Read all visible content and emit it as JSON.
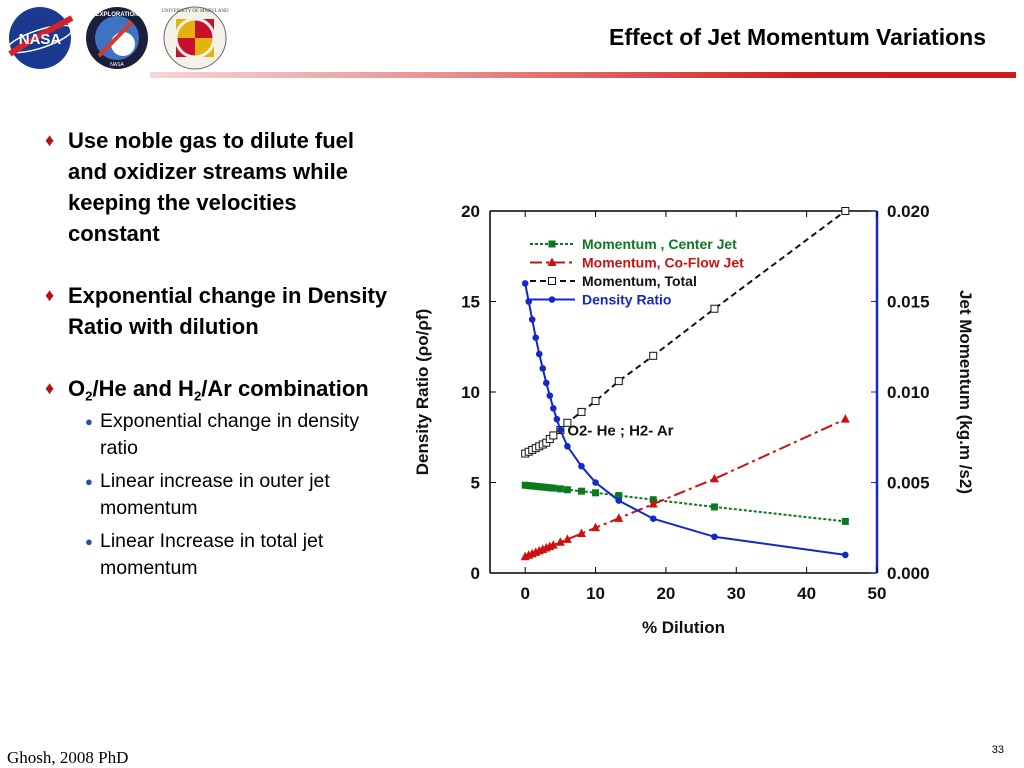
{
  "header": {
    "title": "Effect of Jet Momentum Variations",
    "logos": {
      "nasa": "NASA",
      "exploration": "EXPLORATION",
      "exploration_sub": "NASA",
      "umd": "UNIVERSITY OF MARYLAND"
    },
    "accent": "#d11919"
  },
  "bullets": [
    {
      "text": "Use noble gas to dilute fuel and oxidizer streams while keeping the velocities constant"
    },
    {
      "text": "Exponential change in Density Ratio with dilution"
    },
    {
      "o": "O",
      "o_sub": "2",
      "mid": "/He and H",
      "h_sub": "2",
      "end": "/Ar combination",
      "sub_items": [
        "Exponential change in density ratio",
        "Linear increase in outer jet momentum",
        "Linear Increase in total jet momentum"
      ]
    }
  ],
  "footer": {
    "author": "Ghosh, 2008 PhD",
    "page": "33"
  },
  "chart_data": {
    "type": "line",
    "xlabel": "% Dilution",
    "ylabel": "Density Ratio (ρo/ρf)",
    "y2label": "Jet Momentum (kg.m /s2)",
    "xlim": [
      -5,
      50
    ],
    "ylim": [
      0,
      20
    ],
    "y2lim": [
      0.0,
      0.02
    ],
    "x_ticks": [
      "0",
      "10",
      "20",
      "30",
      "40",
      "50"
    ],
    "y_ticks": [
      "0",
      "5",
      "10",
      "15",
      "20"
    ],
    "y2_ticks": [
      "0.000",
      "0.005",
      "0.010",
      "0.015",
      "0.020"
    ],
    "annotation": "O2- He ; H2- Ar",
    "legend_placement": "top-left",
    "grid": false,
    "series": [
      {
        "name": "Momentum , Center Jet",
        "axis": "right",
        "color": "#0a7a1e",
        "dash": "3 2",
        "marker": "square-filled",
        "x": [
          0,
          0.5,
          1,
          1.5,
          2,
          2.5,
          3,
          3.5,
          4,
          5,
          6,
          8,
          10,
          13.3,
          18.2,
          26.9,
          45.5
        ],
        "y": [
          0.00485,
          0.00483,
          0.00481,
          0.00479,
          0.00477,
          0.00475,
          0.00473,
          0.00471,
          0.00469,
          0.00465,
          0.0046,
          0.00452,
          0.00443,
          0.00428,
          0.00405,
          0.00365,
          0.00285
        ]
      },
      {
        "name": "Momentum, Co-Flow Jet",
        "axis": "right",
        "color": "#cc1111",
        "dash": "12 4 3 4",
        "marker": "triangle-filled",
        "x": [
          0,
          0.5,
          1,
          1.5,
          2,
          2.5,
          3,
          3.5,
          4,
          5,
          6,
          8,
          10,
          13.3,
          18.2,
          26.9,
          45.5
        ],
        "y": [
          0.0009,
          0.00098,
          0.00106,
          0.00114,
          0.00122,
          0.0013,
          0.00138,
          0.00146,
          0.00154,
          0.0017,
          0.00186,
          0.00218,
          0.0025,
          0.00302,
          0.00381,
          0.0052,
          0.0085
        ]
      },
      {
        "name": "Momentum, Total",
        "axis": "right",
        "color": "#111111",
        "dash": "6 4",
        "marker": "square-open",
        "x": [
          0,
          0.5,
          1,
          1.5,
          2,
          2.5,
          3,
          3.5,
          4,
          5,
          6,
          8,
          10,
          13.3,
          18.2,
          26.9,
          45.5
        ],
        "y": [
          0.0066,
          0.0067,
          0.0068,
          0.0069,
          0.007,
          0.0071,
          0.0072,
          0.0074,
          0.0076,
          0.0079,
          0.0083,
          0.0089,
          0.0095,
          0.0106,
          0.012,
          0.0146,
          0.02
        ]
      },
      {
        "name": "Density Ratio",
        "axis": "left",
        "color": "#1428c8",
        "dash": "",
        "marker": "circle-filled",
        "x": [
          0,
          0.5,
          1,
          1.5,
          2,
          2.5,
          3,
          3.5,
          4,
          4.5,
          5,
          6,
          8,
          10,
          13.3,
          18.2,
          26.9,
          45.5
        ],
        "y": [
          16,
          15,
          14,
          13,
          12.1,
          11.3,
          10.5,
          9.8,
          9.1,
          8.5,
          7.9,
          7,
          5.9,
          5.0,
          4.0,
          3.0,
          2.0,
          1.0
        ]
      }
    ]
  }
}
